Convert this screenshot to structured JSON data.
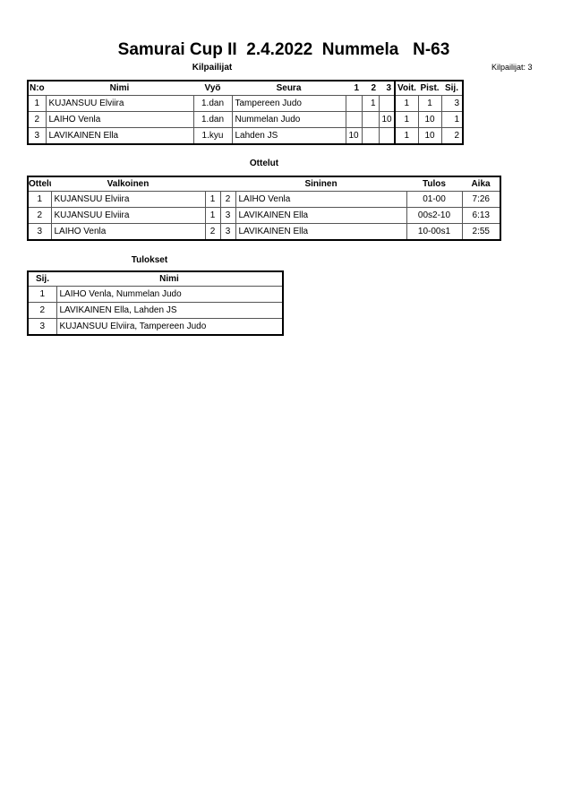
{
  "title": "Samurai Cup II  2.4.2022  Nummela   N-63",
  "competitors_label": "Kilpailijat",
  "competitors_count": "Kilpailijat: 3",
  "competitors": {
    "headers": [
      "N:o",
      "Nimi",
      "Vyö",
      "Seura",
      "1",
      "2",
      "3",
      "Voit.",
      "Pist.",
      "Sij."
    ],
    "rows": [
      [
        "1",
        "KUJANSUU Elviira",
        "1.dan",
        "Tampereen Judo",
        "",
        "1",
        "",
        "1",
        "1",
        "3"
      ],
      [
        "2",
        "LAIHO Venla",
        "1.dan",
        "Nummelan Judo",
        "",
        "",
        "10",
        "1",
        "10",
        "1"
      ],
      [
        "3",
        "LAVIKAINEN Ella",
        "1.kyu",
        "Lahden JS",
        "10",
        "",
        "",
        "1",
        "10",
        "2"
      ]
    ]
  },
  "matches_label": "Ottelut",
  "matches": {
    "headers": [
      "Ottelu",
      "Valkoinen",
      "Sininen",
      "Tulos",
      "Aika"
    ],
    "rows": [
      [
        "1",
        "KUJANSUU Elviira",
        "1",
        "2",
        "LAIHO Venla",
        "01-00",
        "7:26"
      ],
      [
        "2",
        "KUJANSUU Elviira",
        "1",
        "3",
        "LAVIKAINEN Ella",
        "00s2-10",
        "6:13"
      ],
      [
        "3",
        "LAIHO Venla",
        "2",
        "3",
        "LAVIKAINEN Ella",
        "10-00s1",
        "2:55"
      ]
    ]
  },
  "results_label": "Tulokset",
  "results": {
    "headers": [
      "Sij.",
      "Nimi"
    ],
    "rows": [
      [
        "1",
        "LAIHO Venla, Nummelan Judo"
      ],
      [
        "2",
        "LAVIKAINEN Ella, Lahden JS"
      ],
      [
        "3",
        "KUJANSUU Elviira, Tampereen Judo"
      ]
    ]
  }
}
